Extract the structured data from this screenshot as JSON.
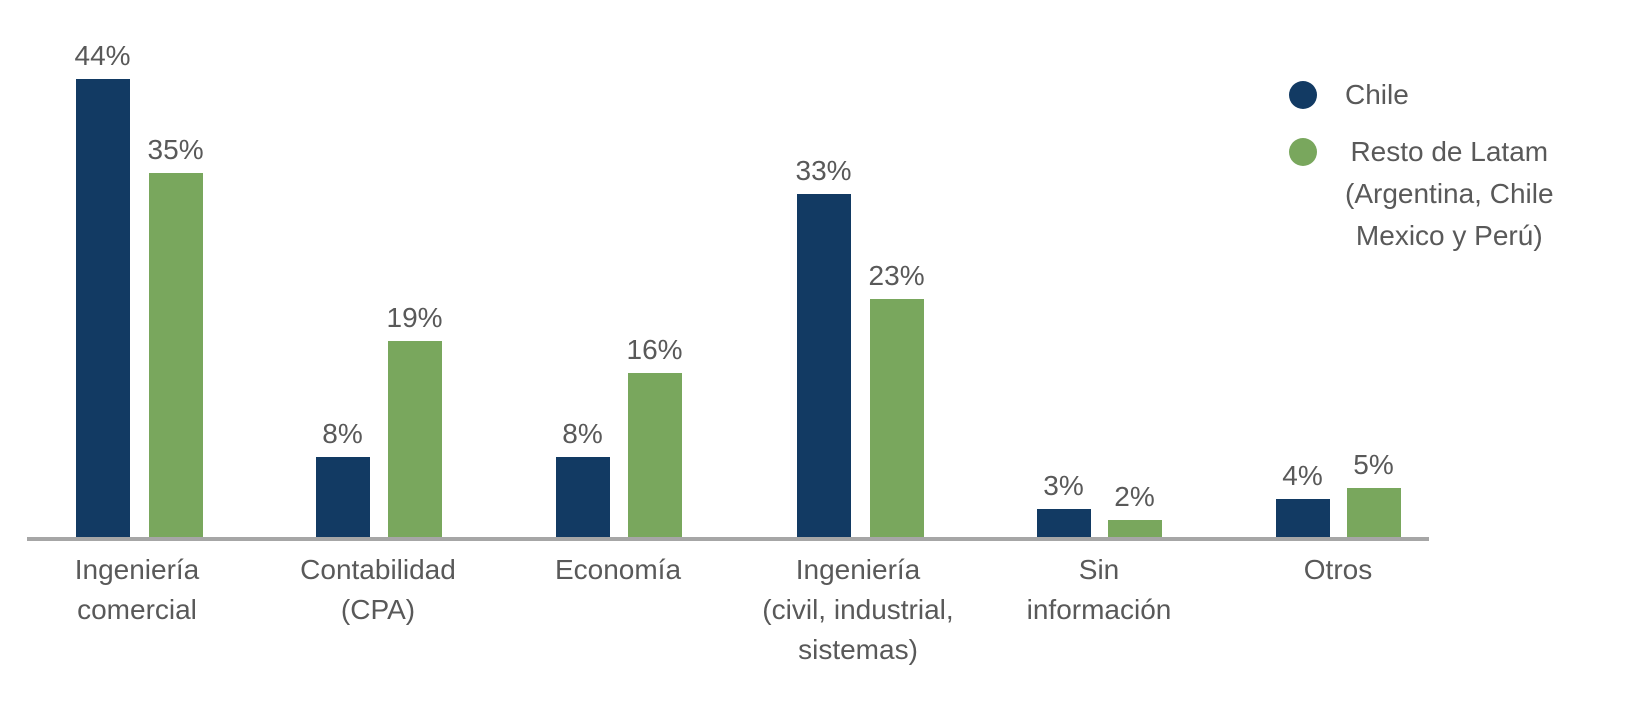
{
  "chart_data": {
    "type": "bar",
    "title": "",
    "categories": [
      "Ingeniería comercial",
      "Contabilidad (CPA)",
      "Economía",
      "Ingeniería (civil, industrial, sistemas)",
      "Sin información",
      "Otros"
    ],
    "category_label_lines": [
      [
        "Ingeniería",
        "comercial"
      ],
      [
        "Contabilidad",
        "(CPA)"
      ],
      [
        "Economía"
      ],
      [
        "Ingeniería",
        "(civil, industrial,",
        "sistemas)"
      ],
      [
        "Sin",
        "información"
      ],
      [
        "Otros"
      ]
    ],
    "series": [
      {
        "name": "Chile",
        "legend_lines": [
          "Chile"
        ],
        "color": "#123a63",
        "values": [
          44,
          8,
          8,
          33,
          3,
          4
        ]
      },
      {
        "name": "Resto de Latam (Argentina, Chile Mexico y Perú)",
        "legend_lines": [
          "Resto de Latam",
          "(Argentina, Chile",
          "Mexico y Perú)"
        ],
        "color": "#79a75d",
        "values": [
          35,
          19,
          16,
          23,
          2,
          5
        ]
      }
    ],
    "value_suffix": "%",
    "ylim": [
      0,
      47
    ],
    "grid": false,
    "y_axis_visible": false,
    "legend_position": "top-right",
    "colors": {
      "axis_line": "#a6a6a6",
      "label_text": "#595959",
      "background": "#ffffff"
    }
  }
}
